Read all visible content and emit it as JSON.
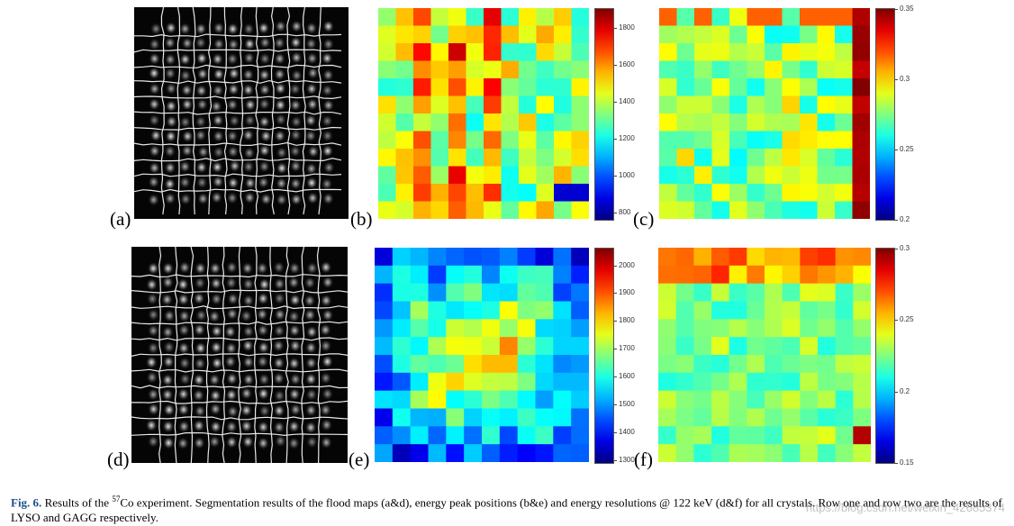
{
  "panel_labels": {
    "a": "(a)",
    "b": "(b)",
    "c": "(c)",
    "d": "(d)",
    "e": "(e)",
    "f": "(f)"
  },
  "panels": [
    {
      "id": "b",
      "type": "heatmap",
      "grid": "12x12",
      "colormap": "jet",
      "colorbar_ticks": [
        "1800",
        "1600",
        "1400",
        "1200",
        "1000",
        "800"
      ],
      "colorbar_range": [
        760,
        1900
      ]
    },
    {
      "id": "c",
      "type": "heatmap",
      "grid": "12x12",
      "colormap": "jet",
      "colorbar_ticks": [
        "0.35",
        "0.3",
        "0.25",
        "0.2"
      ],
      "colorbar_range": [
        0.2,
        0.35
      ]
    },
    {
      "id": "e",
      "type": "heatmap",
      "grid": "12x12",
      "colormap": "jet",
      "colorbar_ticks": [
        "2000",
        "1900",
        "1800",
        "1700",
        "1600",
        "1500",
        "1400",
        "1300"
      ],
      "colorbar_range": [
        1290,
        2060
      ]
    },
    {
      "id": "f",
      "type": "heatmap",
      "grid": "12x12",
      "colormap": "jet",
      "colorbar_ticks": [
        "0.3",
        "0.25",
        "0.2",
        "0.15"
      ],
      "colorbar_range": [
        0.15,
        0.3
      ]
    }
  ],
  "caption": {
    "figure_number": "Fig. 6.",
    "text_before_superscript": " Results of the ",
    "superscript": "57",
    "text_after_superscript": "Co experiment. Segmentation results of the flood maps (a&d), energy peak positions (b&e) and energy resolutions @ 122 keV (d&f) for all crystals. Row one and row two are the results of LYSO and GAGG respectively."
  },
  "watermark": "https://blog.csdn.net/weixin_42685374"
}
